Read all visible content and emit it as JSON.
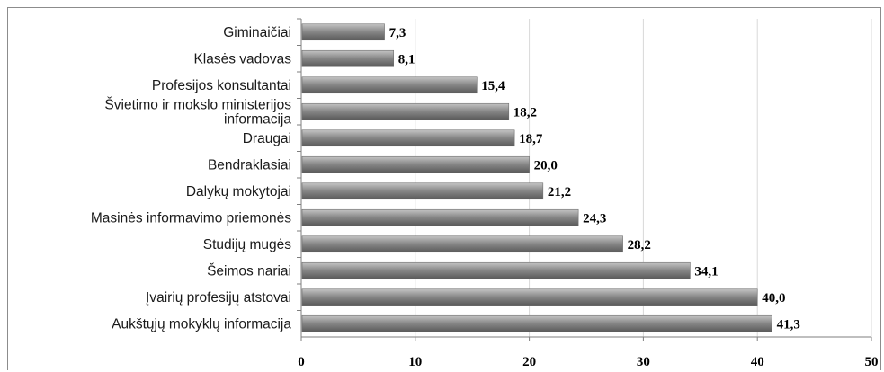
{
  "chart_data": {
    "type": "bar",
    "orientation": "horizontal",
    "categories": [
      "Giminaičiai",
      "Klasės vadovas",
      "Profesijos konsultantai",
      "Švietimo ir mokslo ministerijos\ninformacija",
      "Draugai",
      "Bendraklasiai",
      "Dalykų mokytojai",
      "Masinės informavimo priemonės",
      "Studijų mugės",
      "Šeimos nariai",
      "Įvairių profesijų atstovai",
      "Aukštųjų mokyklų informacija"
    ],
    "values": [
      7.3,
      8.1,
      15.4,
      18.2,
      18.7,
      20.0,
      21.2,
      24.3,
      28.2,
      34.1,
      40.0,
      41.3
    ],
    "value_labels": [
      "7,3",
      "8,1",
      "15,4",
      "18,2",
      "18,7",
      "20,0",
      "21,2",
      "24,3",
      "28,2",
      "34,1",
      "40,0",
      "41,3"
    ],
    "xlim": [
      0,
      50
    ],
    "xticks": [
      "0",
      "10",
      "20",
      "30",
      "40",
      "50"
    ],
    "grid": true,
    "colors": {
      "bar": "#8a8a8a",
      "bar_light": "#c4c4c4",
      "bar_dark": "#5a5a5a",
      "grid": "#d9d9d9",
      "axis": "#7f7f7f"
    }
  }
}
